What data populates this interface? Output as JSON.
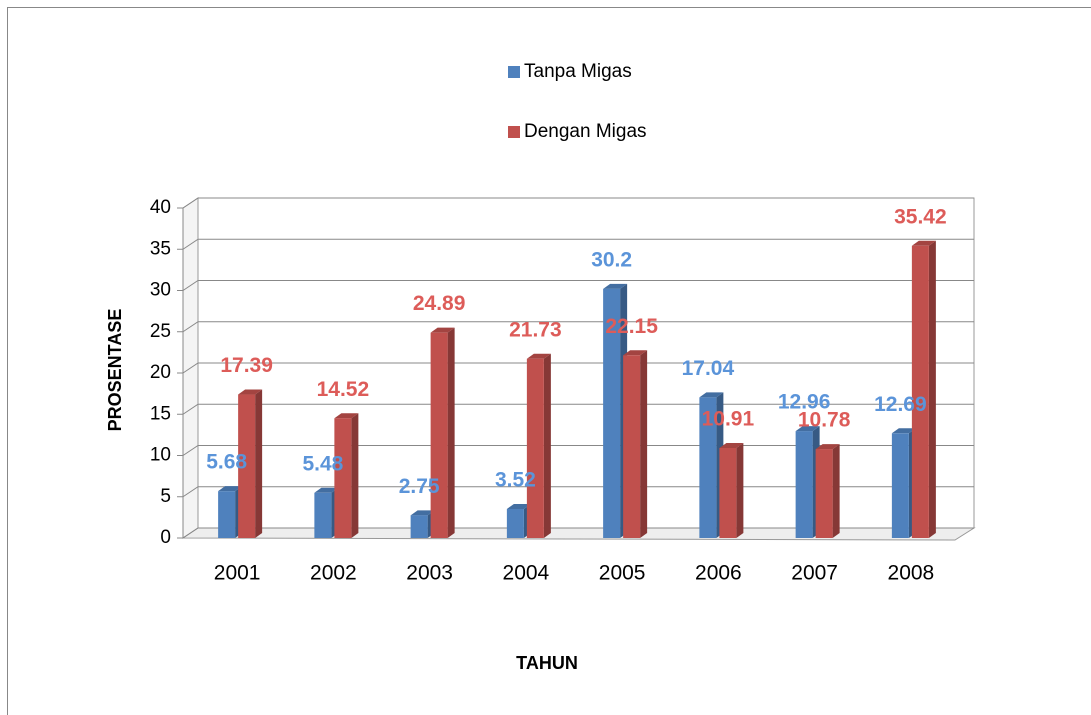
{
  "chart_data": {
    "type": "bar3d",
    "y_label": "PROSENTASE",
    "x_label": "TAHUN",
    "categories": [
      "2001",
      "2002",
      "2003",
      "2004",
      "2005",
      "2006",
      "2007",
      "2008"
    ],
    "series": [
      {
        "name": "Tanpa Migas",
        "color": "#4f81bd",
        "values": [
          5.68,
          5.48,
          2.75,
          3.52,
          30.2,
          17.04,
          12.96,
          12.69
        ]
      },
      {
        "name": "Dengan Migas",
        "color": "#c0504d",
        "values": [
          17.39,
          14.52,
          24.89,
          21.73,
          22.15,
          10.91,
          10.78,
          35.42
        ]
      }
    ],
    "ylim": [
      0,
      40
    ],
    "yticks": [
      0,
      5,
      10,
      15,
      20,
      25,
      30,
      35,
      40
    ],
    "grid": true
  }
}
